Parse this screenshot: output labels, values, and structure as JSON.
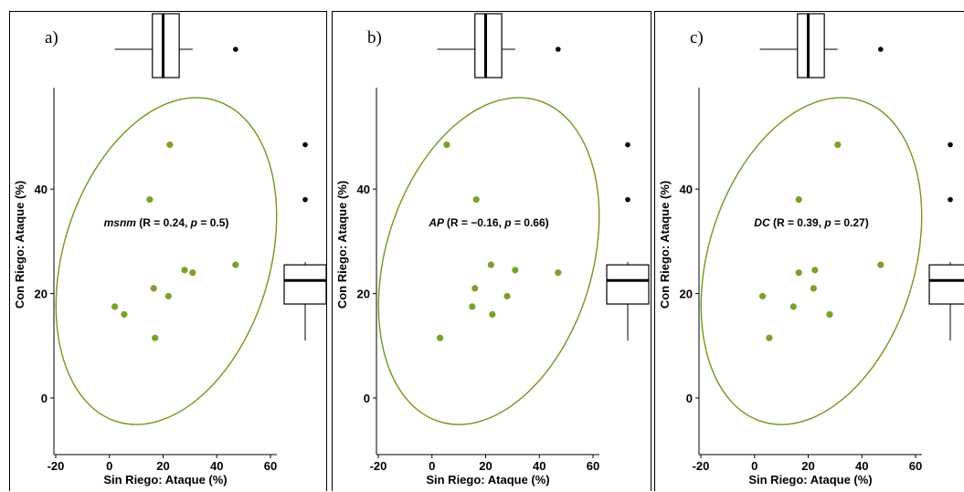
{
  "colors": {
    "points": "#7aa22a",
    "ellipse": "#6e9a1e",
    "outlier": "#000000",
    "box_stroke": "#000000"
  },
  "chart_data": [
    {
      "type": "scatter",
      "panel_label": "a)",
      "xlabel": "Sin Riego: Ataque (%)",
      "ylabel": "Con Riego: Ataque (%)",
      "annotation": {
        "var": "msnm",
        "r_text": "(R = 0.24, ",
        "p_label": "p",
        "p_text": " = 0.5)"
      },
      "xlim": [
        -20,
        60
      ],
      "ylim": [
        -10,
        55
      ],
      "xticks": [
        -20,
        0,
        20,
        40,
        60
      ],
      "yticks": [
        0,
        20,
        40
      ],
      "points": [
        [
          22.5,
          48.5
        ],
        [
          15,
          38
        ],
        [
          47,
          25.5
        ],
        [
          28,
          24.5
        ],
        [
          31,
          24
        ],
        [
          16.5,
          21
        ],
        [
          22,
          19.5
        ],
        [
          2,
          17.5
        ],
        [
          5.5,
          16
        ],
        [
          17,
          11.5
        ]
      ],
      "box_x": {
        "q1": 16,
        "median": 20,
        "q3": 26,
        "whisker_low": 2,
        "whisker_high": 31,
        "outliers": [
          47
        ]
      },
      "box_y": {
        "q1": 18,
        "median": 22.5,
        "q3": 25.5,
        "whisker_low": 11,
        "whisker_high": 26,
        "outliers": [
          48.5,
          38
        ]
      }
    },
    {
      "type": "scatter",
      "panel_label": "b)",
      "xlabel": "Sin Riego: Ataque (%)",
      "ylabel": "Con Riego: Ataque (%)",
      "annotation": {
        "var": "AP",
        "r_text": "(R = −0.16, ",
        "p_label": "p",
        "p_text": " = 0.66)"
      },
      "xlim": [
        -20,
        60
      ],
      "ylim": [
        -10,
        55
      ],
      "xticks": [
        -20,
        0,
        20,
        40,
        60
      ],
      "yticks": [
        0,
        20,
        40
      ],
      "points": [
        [
          5.5,
          48.5
        ],
        [
          16.5,
          38
        ],
        [
          22,
          25.5
        ],
        [
          31,
          24.5
        ],
        [
          47,
          24
        ],
        [
          16,
          21
        ],
        [
          28,
          19.5
        ],
        [
          15,
          17.5
        ],
        [
          22.5,
          16
        ],
        [
          3,
          11.5
        ]
      ],
      "box_x": {
        "q1": 16,
        "median": 20,
        "q3": 26,
        "whisker_low": 2,
        "whisker_high": 31,
        "outliers": [
          47
        ]
      },
      "box_y": {
        "q1": 18,
        "median": 22.5,
        "q3": 25.5,
        "whisker_low": 11,
        "whisker_high": 26,
        "outliers": [
          48.5,
          38
        ]
      }
    },
    {
      "type": "scatter",
      "panel_label": "c)",
      "xlabel": "Sin Riego: Ataque (%)",
      "ylabel": "Con Riego: Ataque (%)",
      "annotation": {
        "var": "DC",
        "r_text": "(R = 0.39, ",
        "p_label": "p",
        "p_text": " = 0.27)"
      },
      "xlim": [
        -20,
        60
      ],
      "ylim": [
        -10,
        55
      ],
      "xticks": [
        -20,
        0,
        20,
        40,
        60
      ],
      "yticks": [
        0,
        20,
        40
      ],
      "points": [
        [
          31,
          48.5
        ],
        [
          16.5,
          38
        ],
        [
          47,
          25.5
        ],
        [
          22.5,
          24.5
        ],
        [
          16.5,
          24
        ],
        [
          22,
          21
        ],
        [
          3,
          19.5
        ],
        [
          14.5,
          17.5
        ],
        [
          28,
          16
        ],
        [
          5.5,
          11.5
        ]
      ],
      "box_x": {
        "q1": 16,
        "median": 20,
        "q3": 26,
        "whisker_low": 2,
        "whisker_high": 31,
        "outliers": [
          47
        ]
      },
      "box_y": {
        "q1": 18,
        "median": 22.5,
        "q3": 25.5,
        "whisker_low": 11,
        "whisker_high": 26,
        "outliers": [
          48.5,
          38
        ]
      }
    }
  ]
}
